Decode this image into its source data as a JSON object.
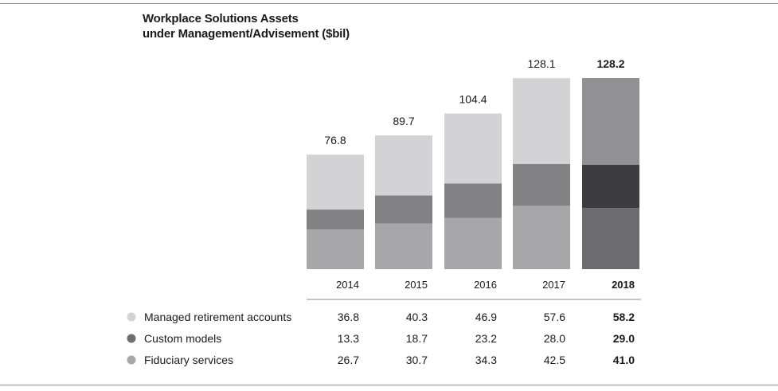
{
  "chart_data": {
    "type": "bar",
    "stacked": true,
    "title": "Workplace Solutions Assets",
    "subtitle": "under Management/Advisement ($bil)",
    "categories": [
      "2014",
      "2015",
      "2016",
      "2017",
      "2018"
    ],
    "highlight_category": "2018",
    "totals": [
      "76.8",
      "89.7",
      "104.4",
      "128.1",
      "128.2"
    ],
    "series": [
      {
        "name": "Fiduciary services",
        "values": [
          26.7,
          30.7,
          34.3,
          42.5,
          41.0
        ],
        "labels": [
          "26.7",
          "30.7",
          "34.3",
          "42.5",
          "41.0"
        ],
        "color": "#a7a7a9",
        "highlight_color": "#6c6c70",
        "legend_color": "#a7a7a9"
      },
      {
        "name": "Custom models",
        "values": [
          13.3,
          18.7,
          23.2,
          28.0,
          29.0
        ],
        "labels": [
          "13.3",
          "18.7",
          "23.2",
          "28.0",
          "29.0"
        ],
        "color": "#828284",
        "highlight_color": "#3c3c3e",
        "legend_color": "#6e6e70"
      },
      {
        "name": "Managed retirement accounts",
        "values": [
          36.8,
          40.3,
          46.9,
          57.6,
          58.2
        ],
        "labels": [
          "36.8",
          "40.3",
          "46.9",
          "57.6",
          "58.2"
        ],
        "color": "#d3d3d5",
        "highlight_color": "#919193",
        "legend_color": "#d3d3d5"
      }
    ],
    "table_order": [
      "Managed retirement accounts",
      "Custom models",
      "Fiduciary services"
    ],
    "ylim": [
      0,
      128.2
    ],
    "grid": false,
    "legend": "table-below"
  }
}
